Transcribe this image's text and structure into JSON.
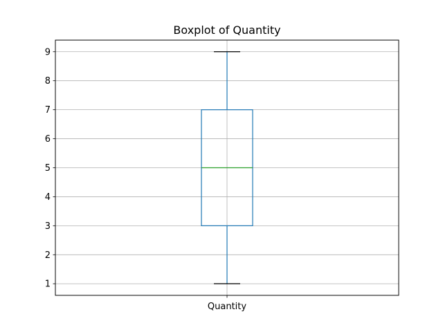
{
  "chart_data": {
    "type": "boxplot",
    "title": "Boxplot of Quantity",
    "xlabel": "",
    "ylabel": "",
    "categories": [
      "Quantity"
    ],
    "boxes": [
      {
        "category": "Quantity",
        "whisker_low": 1,
        "q1": 3,
        "median": 5,
        "q3": 7,
        "whisker_high": 9
      }
    ],
    "ylim": [
      0.6,
      9.4
    ],
    "yticks": [
      1,
      2,
      3,
      4,
      5,
      6,
      7,
      8,
      9
    ],
    "grid": true,
    "colors": {
      "box": "#1f77b4",
      "median": "#2ca02c",
      "cap": "#000000",
      "grid": "#b0b0b0",
      "axes": "#000000"
    }
  }
}
